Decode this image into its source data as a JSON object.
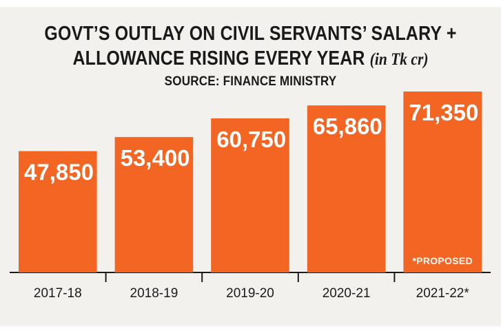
{
  "title_line1": "GOVT’S OUTLAY ON CIVIL SERVANTS’ SALARY +",
  "title_line2": "ALLOWANCE RISING EVERY YEAR",
  "unit": "(in Tk cr)",
  "source": "SOURCE: FINANCE MINISTRY",
  "colors": {
    "bar": "#f26522",
    "background": "#f3f1ee",
    "text": "#1a1a1a",
    "axis": "#1a1a1a"
  },
  "chart_data": {
    "type": "bar",
    "title": "GOVT’S OUTLAY ON CIVIL SERVANTS’ SALARY + ALLOWANCE RISING EVERY YEAR",
    "subtitle": "SOURCE: FINANCE MINISTRY",
    "unit": "(in Tk cr)",
    "categories": [
      "2017-18",
      "2018-19",
      "2019-20",
      "2020-21",
      "2021-22*"
    ],
    "values": [
      47850,
      53400,
      60750,
      65860,
      71350
    ],
    "value_labels": [
      "47,850",
      "53,400",
      "60,750",
      "65,860",
      "71,350"
    ],
    "annotation": "*PROPOSED",
    "xlabel": "",
    "ylabel": "",
    "grid": false,
    "legend": "none",
    "ylim": [
      0,
      78000
    ]
  }
}
